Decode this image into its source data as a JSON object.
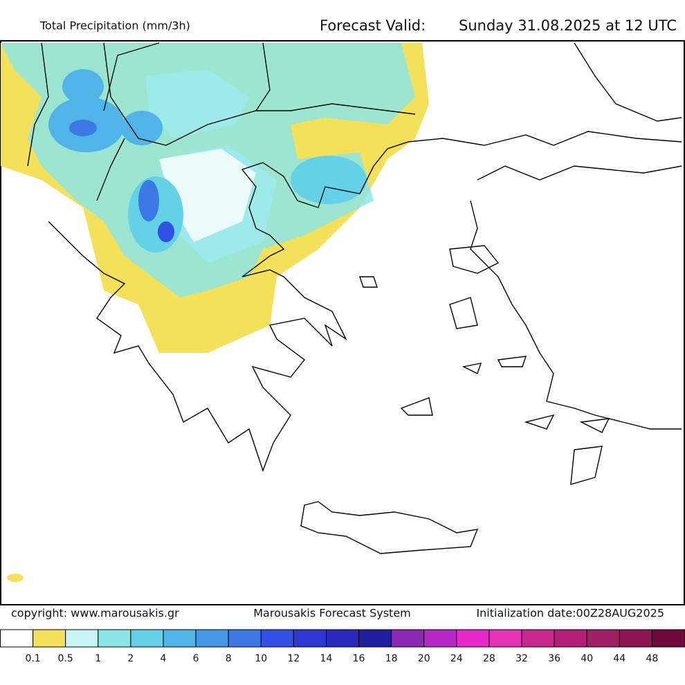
{
  "header": {
    "title": "Total Precipitation (mm/3h)",
    "forecast_label": "Forecast Valid:",
    "forecast_time": "Sunday 31.08.2025 at 12 UTC"
  },
  "footer": {
    "copyright": "copyright: www.marousakis.gr",
    "system": "Marousakis Forecast System",
    "init": "Initialization date:00Z28AUG2025"
  },
  "legend": {
    "colors": [
      "#ffffff",
      "#f5e05a",
      "#c8f5f5",
      "#8ce6e6",
      "#64d2e6",
      "#50b4e6",
      "#4696e6",
      "#3c78e6",
      "#3250e6",
      "#2d37d2",
      "#2828be",
      "#1e1ea0",
      "#8c28b4",
      "#b428c8",
      "#e628c8",
      "#e632b4",
      "#c8288c",
      "#b41e78",
      "#a01e64",
      "#8c1450",
      "#6e0a3c"
    ],
    "labels": [
      0.1,
      0.5,
      1,
      2,
      4,
      6,
      8,
      10,
      12,
      14,
      16,
      18,
      20,
      24,
      28,
      32,
      36,
      40,
      44,
      48
    ]
  }
}
